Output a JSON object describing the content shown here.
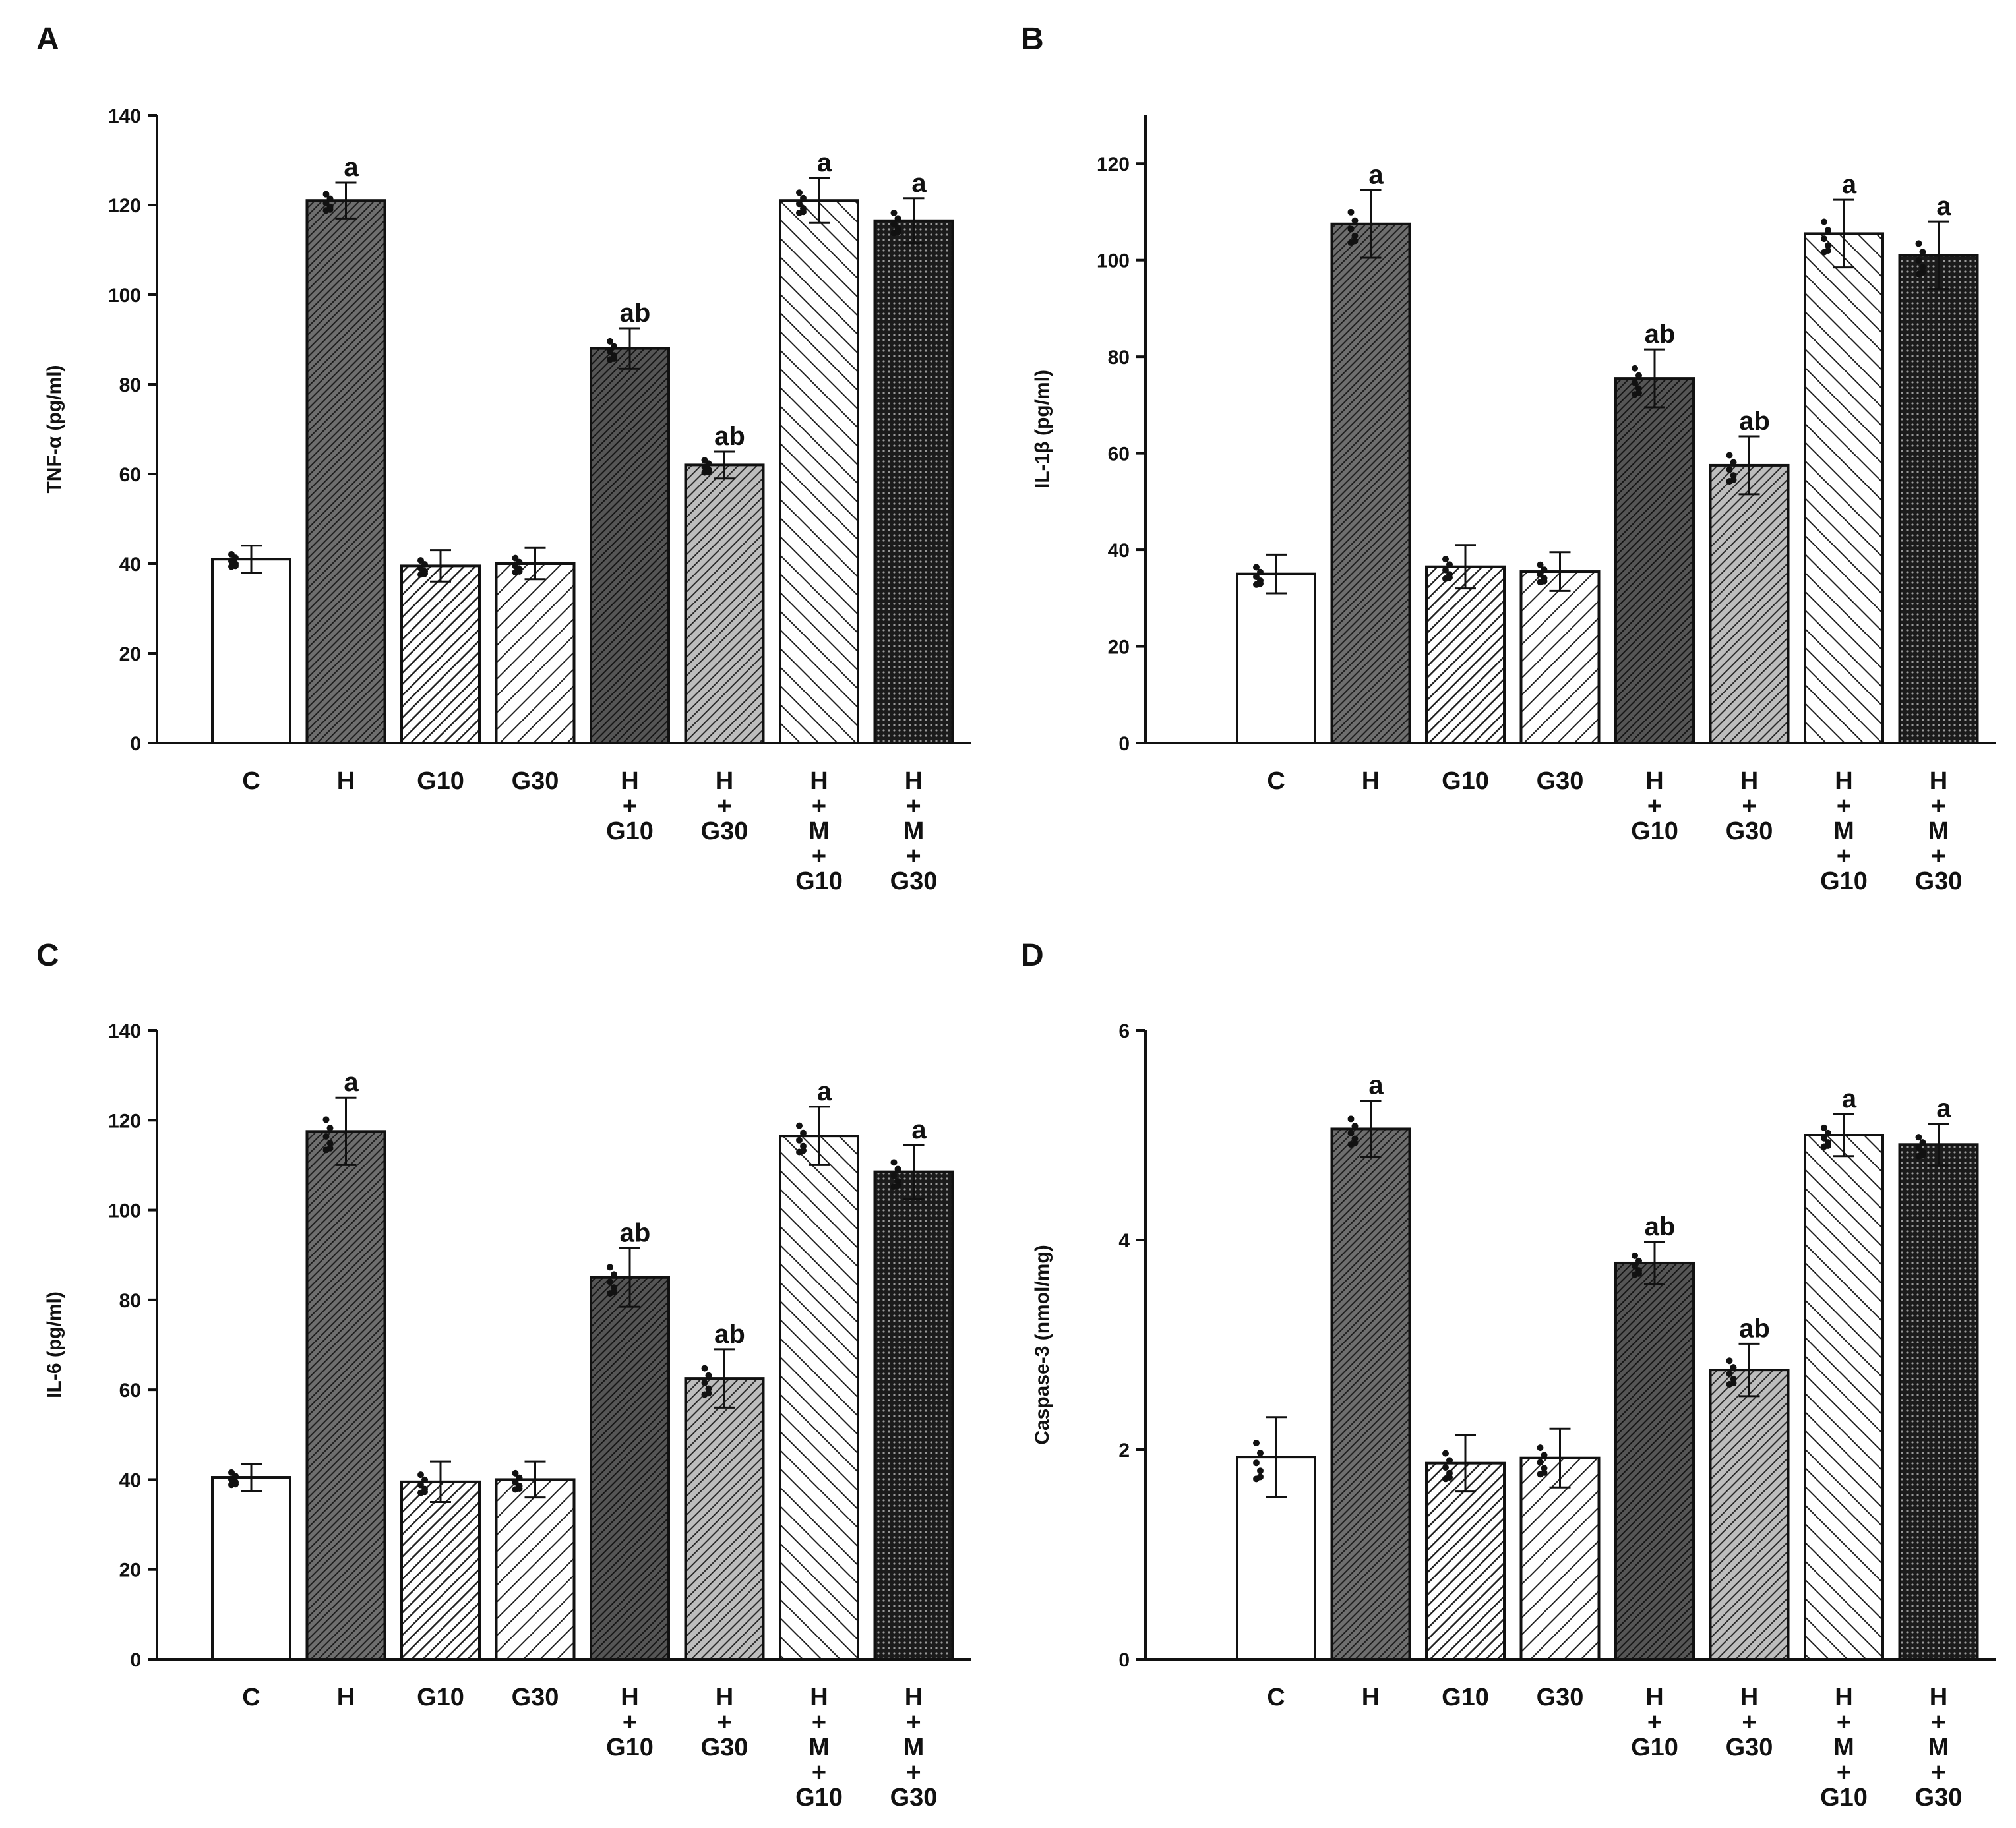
{
  "figure": {
    "panels": [
      "A",
      "B",
      "C",
      "D"
    ],
    "patterns": [
      "white",
      "dense-diag",
      "diag-left",
      "diag-wide",
      "dense-diag-dark",
      "diag-medium",
      "diag-wide-left",
      "crosshatch-dark"
    ]
  },
  "chart_data": [
    {
      "panel": "A",
      "type": "bar",
      "title": "",
      "ylabel": "TNF-α (pg/ml)",
      "xlabel": "",
      "ylim": [
        0,
        140
      ],
      "yticks": [
        0,
        20,
        40,
        60,
        80,
        100,
        120,
        140
      ],
      "categories": [
        [
          "C"
        ],
        [
          "H"
        ],
        [
          "G10"
        ],
        [
          "G30"
        ],
        [
          "H",
          "+",
          "G10"
        ],
        [
          "H",
          "+",
          "G30"
        ],
        [
          "H",
          "+",
          "M",
          "+",
          "G10"
        ],
        [
          "H",
          "+",
          "M",
          "+",
          "G30"
        ]
      ],
      "values": [
        41,
        121,
        39.5,
        40,
        88,
        62,
        121,
        116.5
      ],
      "errors": [
        3,
        4,
        3.5,
        3.5,
        4.5,
        3,
        5,
        5
      ],
      "significance": [
        "",
        "a",
        "",
        "",
        "ab",
        "ab",
        "a",
        "a"
      ]
    },
    {
      "panel": "B",
      "type": "bar",
      "title": "",
      "ylabel": "IL-1β (pg/ml)",
      "xlabel": "",
      "ylim": [
        0,
        130
      ],
      "yticks": [
        0,
        20,
        40,
        60,
        80,
        100,
        120
      ],
      "categories": [
        [
          "C"
        ],
        [
          "H"
        ],
        [
          "G10"
        ],
        [
          "G30"
        ],
        [
          "H",
          "+",
          "G10"
        ],
        [
          "H",
          "+",
          "G30"
        ],
        [
          "H",
          "+",
          "M",
          "+",
          "G10"
        ],
        [
          "H",
          "+",
          "M",
          "+",
          "G30"
        ]
      ],
      "values": [
        35,
        107.5,
        36.5,
        35.5,
        75.5,
        57.5,
        105.5,
        101
      ],
      "errors": [
        4,
        7,
        4.5,
        4,
        6,
        6,
        7,
        7
      ],
      "significance": [
        "",
        "a",
        "",
        "",
        "ab",
        "ab",
        "a",
        "a"
      ]
    },
    {
      "panel": "C",
      "type": "bar",
      "title": "",
      "ylabel": "IL-6 (pg/ml)",
      "xlabel": "",
      "ylim": [
        0,
        140
      ],
      "yticks": [
        0,
        20,
        40,
        60,
        80,
        100,
        120,
        140
      ],
      "categories": [
        [
          "C"
        ],
        [
          "H"
        ],
        [
          "G10"
        ],
        [
          "G30"
        ],
        [
          "H",
          "+",
          "G10"
        ],
        [
          "H",
          "+",
          "G30"
        ],
        [
          "H",
          "+",
          "M",
          "+",
          "G10"
        ],
        [
          "H",
          "+",
          "M",
          "+",
          "G30"
        ]
      ],
      "values": [
        40.5,
        117.5,
        39.5,
        40,
        85,
        62.5,
        116.5,
        108.5
      ],
      "errors": [
        3,
        7.5,
        4.5,
        4,
        6.5,
        6.5,
        6.5,
        6
      ],
      "significance": [
        "",
        "a",
        "",
        "",
        "ab",
        "ab",
        "a",
        "a"
      ]
    },
    {
      "panel": "D",
      "type": "bar",
      "title": "",
      "ylabel": "Caspase-3 (nmol/mg)",
      "xlabel": "",
      "ylim": [
        0,
        6
      ],
      "yticks": [
        0,
        2,
        4,
        6
      ],
      "categories": [
        [
          "C"
        ],
        [
          "H"
        ],
        [
          "G10"
        ],
        [
          "G30"
        ],
        [
          "H",
          "+",
          "G10"
        ],
        [
          "H",
          "+",
          "G30"
        ],
        [
          "H",
          "+",
          "M",
          "+",
          "G10"
        ],
        [
          "H",
          "+",
          "M",
          "+",
          "G30"
        ]
      ],
      "values": [
        1.93,
        5.06,
        1.87,
        1.92,
        3.78,
        2.76,
        5.0,
        4.91
      ],
      "errors": [
        0.38,
        0.27,
        0.27,
        0.28,
        0.2,
        0.25,
        0.2,
        0.2
      ],
      "significance": [
        "",
        "a",
        "",
        "",
        "ab",
        "ab",
        "a",
        "a"
      ]
    }
  ]
}
